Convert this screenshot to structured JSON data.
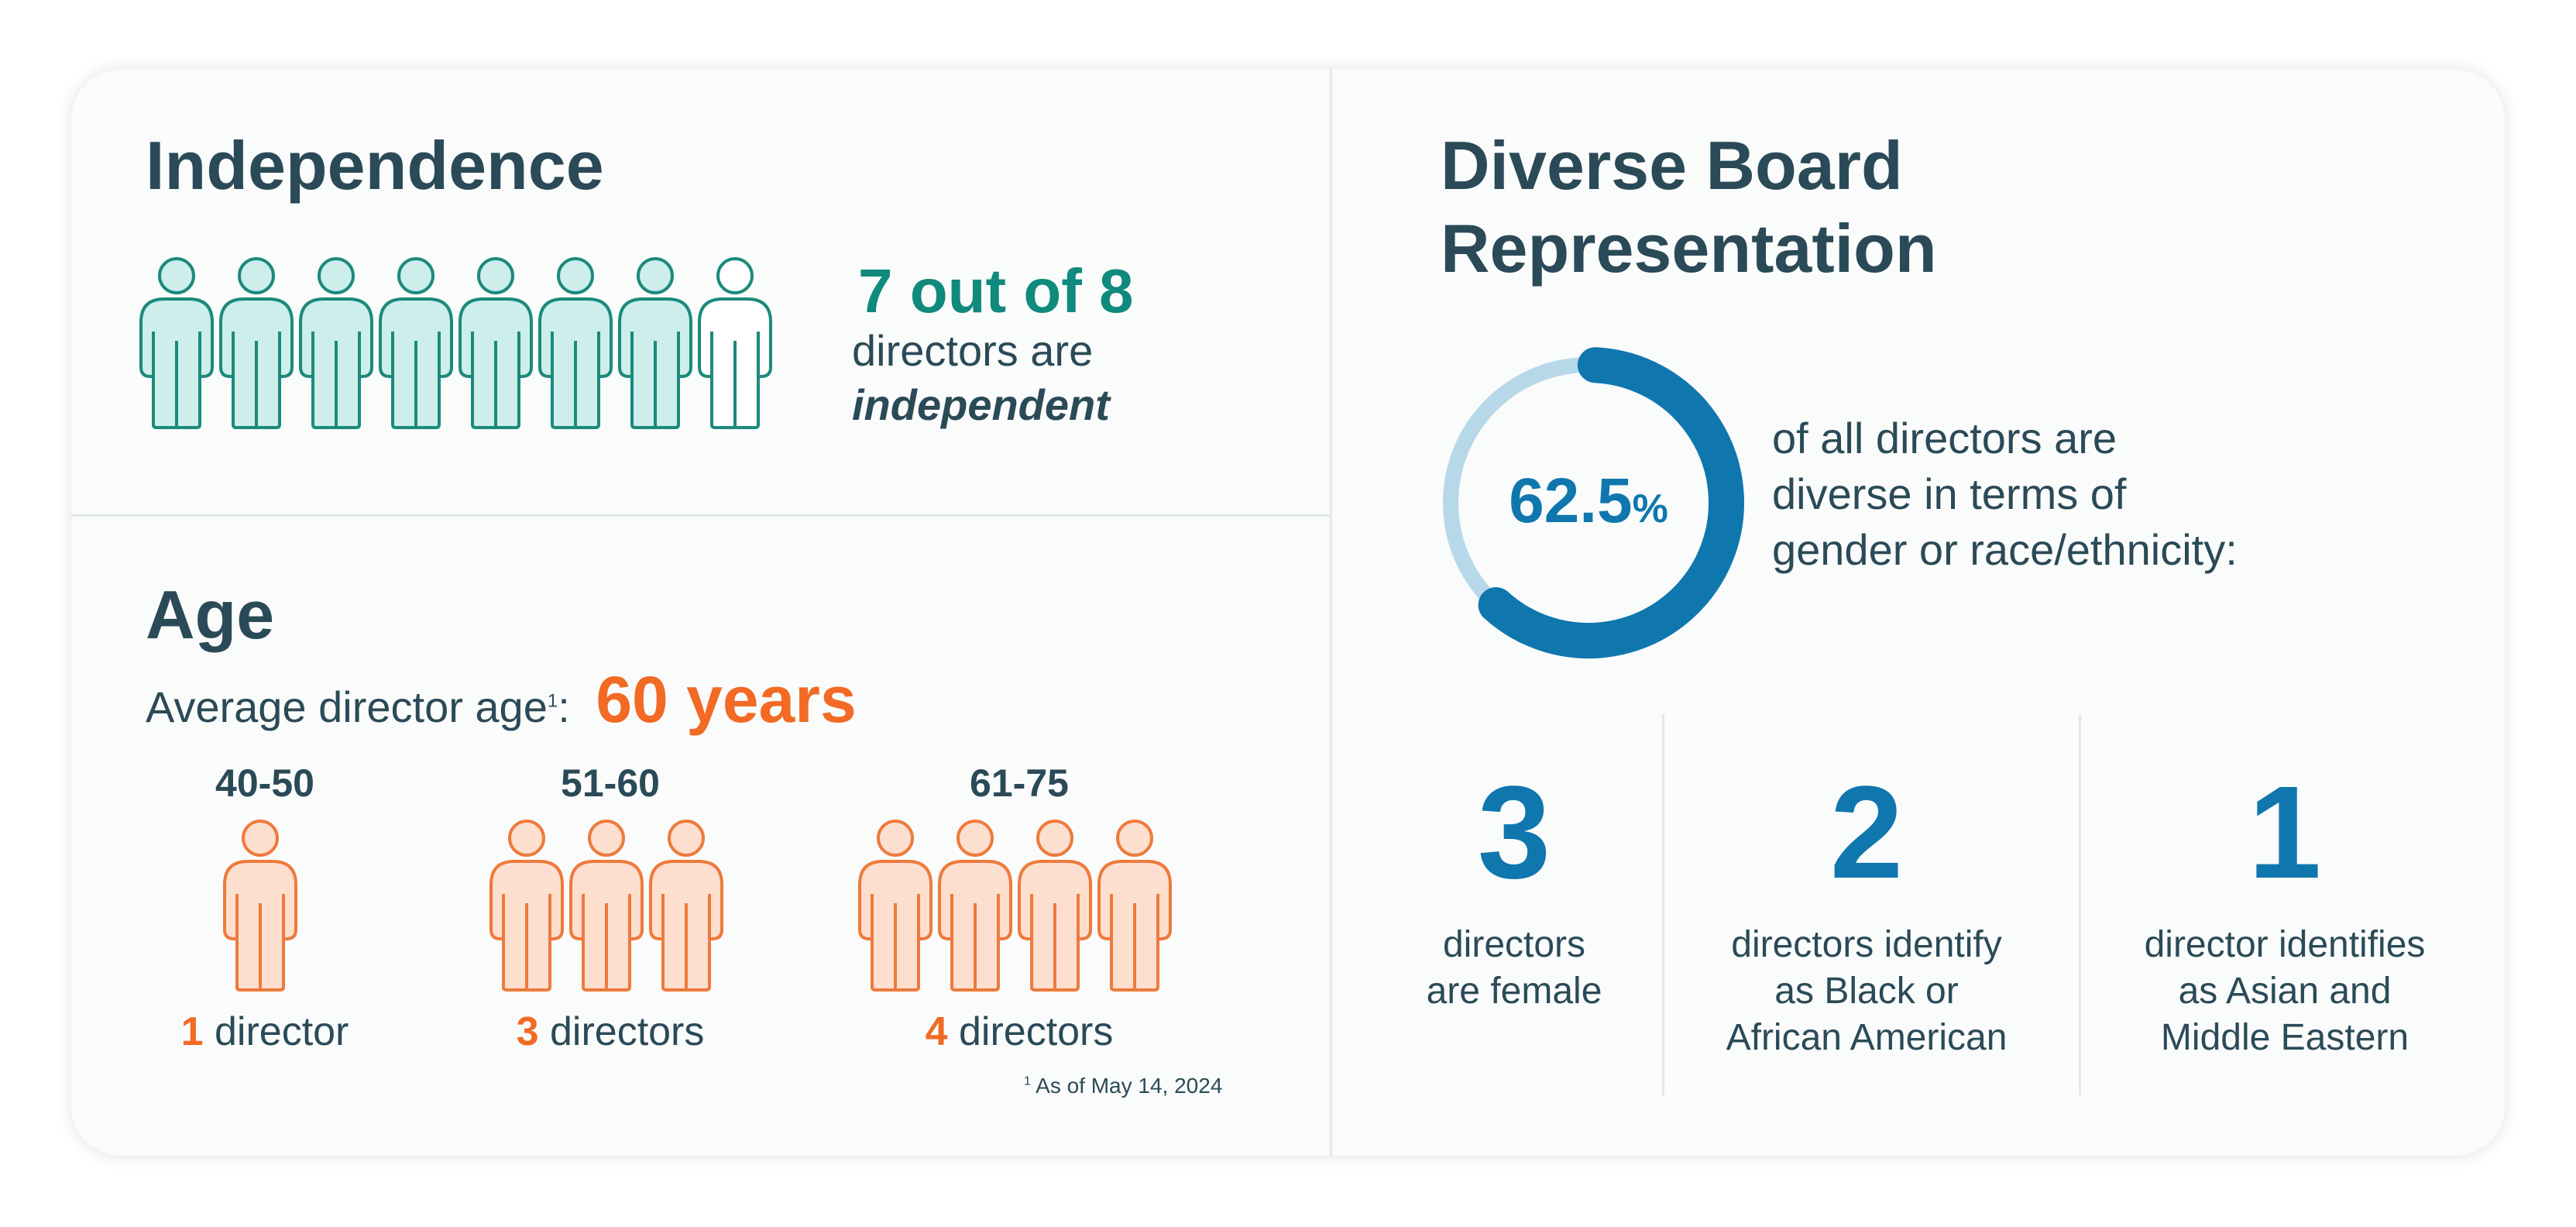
{
  "independence": {
    "title": "Independence",
    "headline": "7 out of 8",
    "line1": "directors are",
    "line2": "independent",
    "independent_count": 7,
    "total_count": 8,
    "colors": {
      "accent": "#0f8a7c",
      "fill": "#cdeeea",
      "stroke": "#1b8a7c"
    }
  },
  "age": {
    "title": "Age",
    "avg_label": "Average director age",
    "avg_sup": "1",
    "avg_sep": ":",
    "avg_value": "60 years",
    "groups": [
      {
        "range": "40-50",
        "count_num": "1",
        "count_label": " director",
        "people": 1
      },
      {
        "range": "51-60",
        "count_num": "3",
        "count_label": " directors",
        "people": 3
      },
      {
        "range": "61-75",
        "count_num": "4",
        "count_label": " directors",
        "people": 4
      }
    ],
    "footnote_sup": "1",
    "footnote": " As of May 14, 2024",
    "colors": {
      "accent": "#f26a24",
      "fill": "#fddfd0",
      "stroke": "#ee7a3c"
    }
  },
  "diversity": {
    "title_line1": "Diverse Board",
    "title_line2": "Representation",
    "percent_value": "62.5",
    "percent_sign": "%",
    "percent": 62.5,
    "desc_line1": "of all directors are",
    "desc_line2": "diverse in terms of",
    "desc_line3": "gender or race/ethnicity:",
    "stats": [
      {
        "number": "3",
        "line1": "directors",
        "line2": "are female"
      },
      {
        "number": "2",
        "line1": "directors identify",
        "line2": "as Black or",
        "line3": "African American"
      },
      {
        "number": "1",
        "line1": "director identifies",
        "line2": "as Asian and",
        "line3": "Middle Eastern"
      }
    ],
    "colors": {
      "accent": "#0f77ae",
      "track": "#b7d8e8"
    }
  }
}
